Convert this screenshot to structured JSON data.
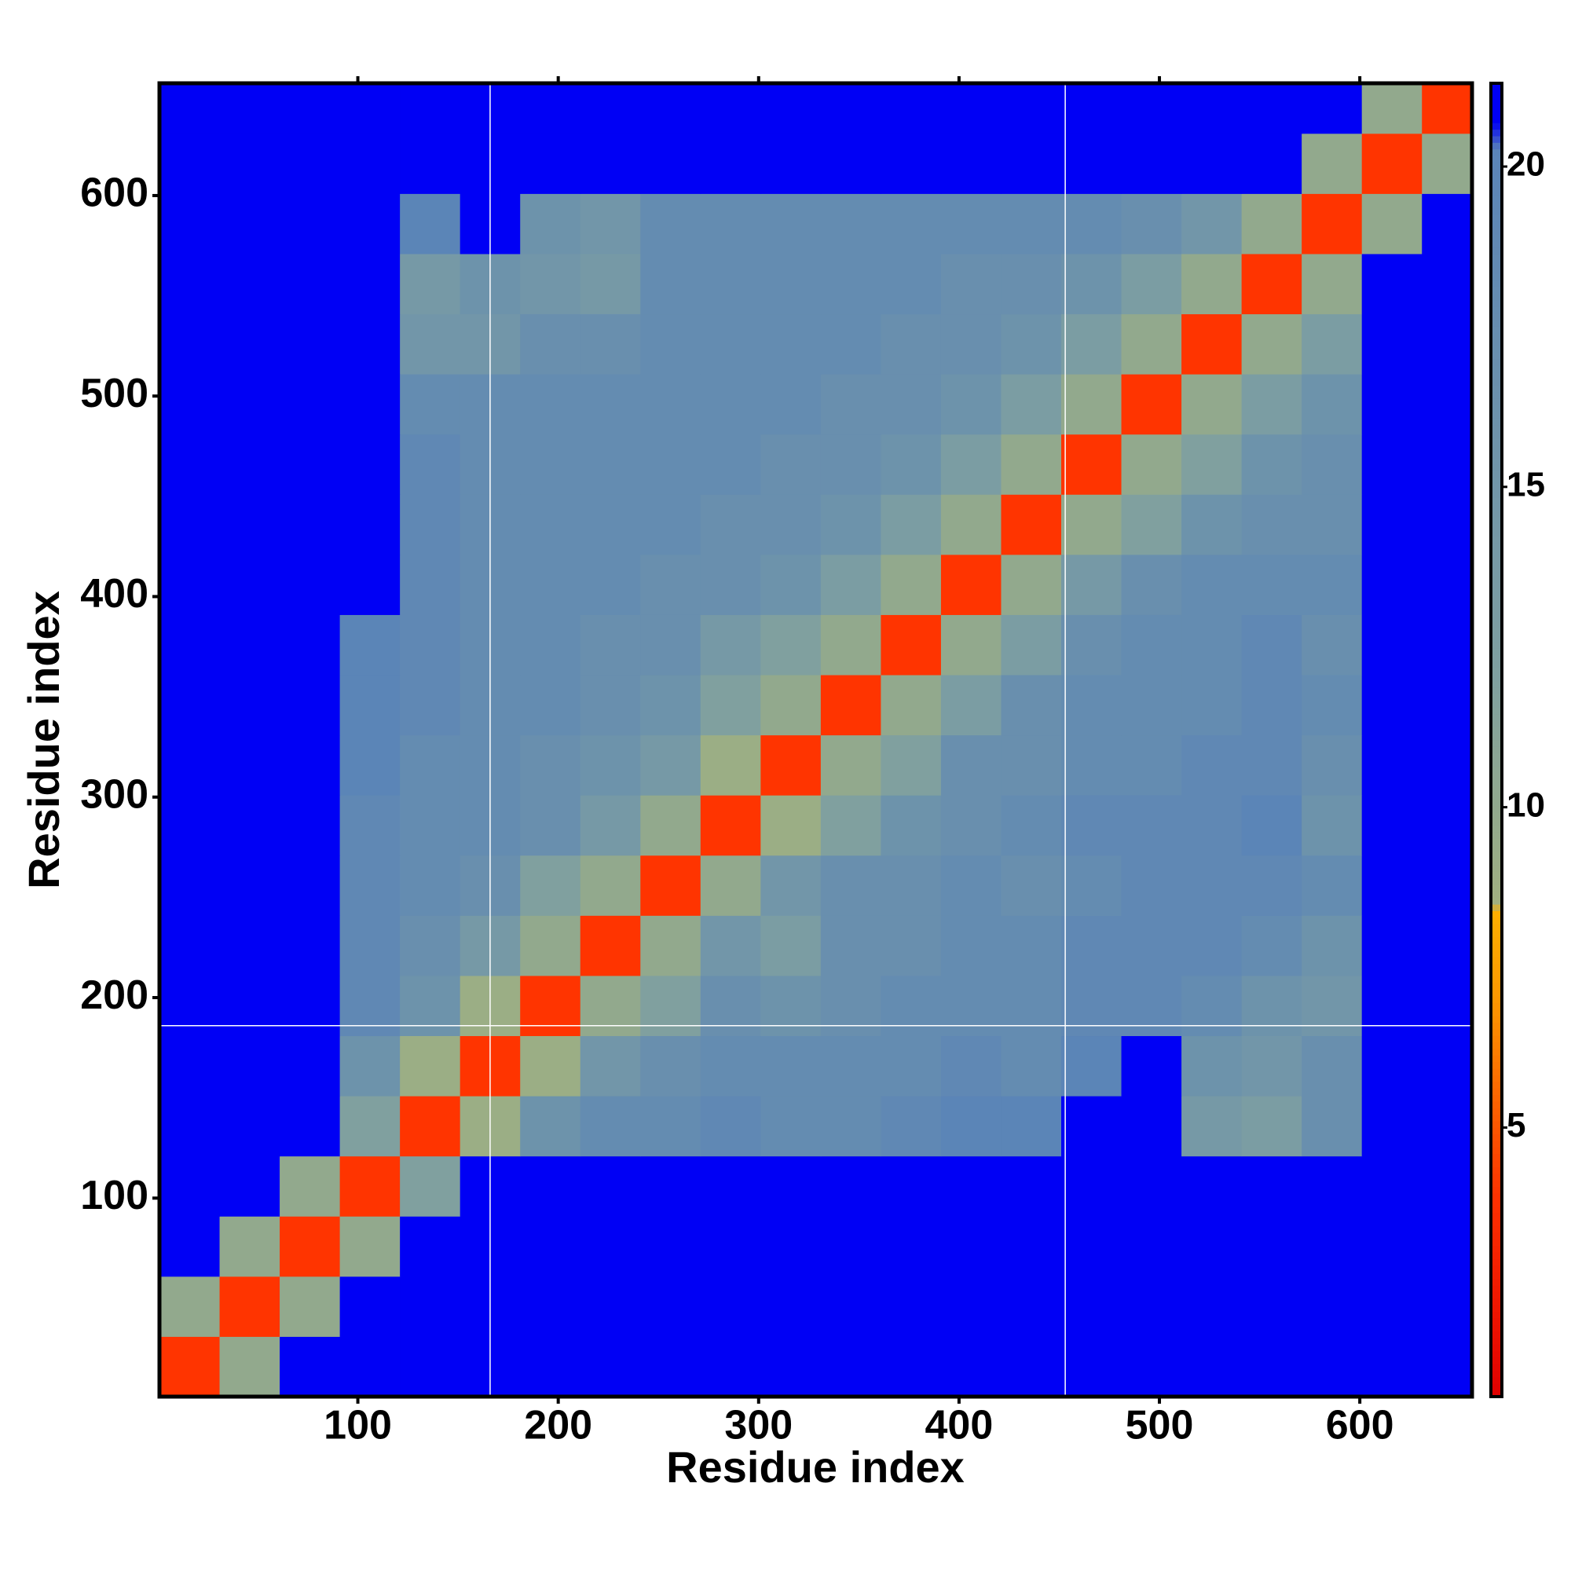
{
  "chart_data": {
    "type": "heatmap",
    "xlabel": "Residue index",
    "ylabel": "Residue index",
    "xlim": [
      1,
      656
    ],
    "ylim": [
      1,
      656
    ],
    "xticks": [
      100,
      200,
      300,
      400,
      500,
      600
    ],
    "yticks": [
      100,
      200,
      300,
      400,
      500,
      600
    ],
    "bins": [
      1,
      31,
      61,
      91,
      121,
      151,
      181,
      211,
      241,
      271,
      301,
      331,
      361,
      391,
      421,
      451,
      481,
      511,
      541,
      571,
      601,
      631,
      656
    ],
    "values": [
      [
        4,
        10,
        22,
        22,
        22,
        22,
        22,
        22,
        22,
        22,
        22,
        22,
        22,
        22,
        22,
        22,
        22,
        22,
        22,
        22,
        22,
        22
      ],
      [
        10,
        4,
        10,
        22,
        22,
        22,
        22,
        22,
        22,
        22,
        22,
        22,
        22,
        22,
        22,
        22,
        22,
        22,
        22,
        22,
        22,
        22
      ],
      [
        22,
        10,
        4,
        10,
        22,
        22,
        22,
        22,
        22,
        22,
        22,
        22,
        22,
        22,
        22,
        22,
        22,
        22,
        22,
        22,
        22,
        22
      ],
      [
        22,
        22,
        10,
        4,
        12,
        22,
        22,
        22,
        22,
        22,
        22,
        22,
        22,
        22,
        22,
        22,
        22,
        22,
        22,
        22,
        22,
        22
      ],
      [
        22,
        22,
        22,
        12,
        4,
        9,
        16,
        18,
        18,
        19,
        18,
        18,
        19,
        20,
        20,
        22,
        22,
        14,
        13,
        17,
        22,
        22
      ],
      [
        22,
        22,
        22,
        16,
        9,
        4,
        9,
        15,
        17,
        18,
        18,
        18,
        18,
        19,
        18,
        20,
        21,
        16,
        15,
        17,
        22,
        22
      ],
      [
        22,
        22,
        22,
        19,
        16,
        9,
        4,
        10,
        12,
        17,
        16,
        17,
        18,
        18,
        18,
        19,
        19,
        18,
        16,
        15,
        22,
        22
      ],
      [
        22,
        22,
        22,
        19,
        17,
        14,
        10,
        4,
        10,
        15,
        13,
        17,
        17,
        18,
        18,
        19,
        19,
        19,
        18,
        16,
        22,
        22
      ],
      [
        22,
        22,
        22,
        19,
        18,
        17,
        12,
        10,
        4,
        10,
        15,
        17,
        17,
        18,
        17,
        18,
        19,
        19,
        19,
        18,
        22,
        22
      ],
      [
        22,
        22,
        22,
        19,
        18,
        18,
        17,
        14,
        10,
        4,
        9,
        12,
        16,
        17,
        18,
        19,
        19,
        19,
        20,
        16,
        22,
        22
      ],
      [
        22,
        22,
        22,
        20,
        18,
        18,
        17,
        16,
        14,
        9,
        4,
        10,
        12,
        17,
        17,
        18,
        18,
        19,
        19,
        17,
        22,
        22
      ],
      [
        22,
        22,
        22,
        20,
        19,
        18,
        18,
        17,
        16,
        12,
        10,
        4,
        10,
        13,
        17,
        18,
        18,
        18,
        19,
        18,
        22,
        22
      ],
      [
        22,
        22,
        22,
        20,
        19,
        18,
        18,
        17,
        17,
        14,
        12,
        10,
        4,
        10,
        13,
        17,
        18,
        18,
        19,
        17,
        22,
        22
      ],
      [
        22,
        22,
        22,
        21,
        19,
        18,
        18,
        18,
        17,
        17,
        16,
        13,
        10,
        4,
        10,
        14,
        17,
        18,
        18,
        18,
        22,
        22
      ],
      [
        22,
        22,
        22,
        21,
        19,
        18,
        18,
        18,
        18,
        17,
        17,
        16,
        13,
        10,
        4,
        10,
        12,
        16,
        17,
        17,
        22,
        22
      ],
      [
        22,
        22,
        22,
        22,
        19,
        18,
        18,
        18,
        18,
        18,
        17,
        17,
        16,
        13,
        10,
        4,
        10,
        12,
        16,
        17,
        22,
        22
      ],
      [
        22,
        22,
        22,
        22,
        18,
        18,
        18,
        18,
        18,
        18,
        18,
        17,
        17,
        16,
        13,
        10,
        4,
        10,
        13,
        16,
        22,
        22
      ],
      [
        22,
        22,
        22,
        22,
        15,
        15,
        17,
        17,
        18,
        18,
        18,
        18,
        17,
        17,
        16,
        13,
        10,
        4,
        10,
        13,
        22,
        22
      ],
      [
        22,
        22,
        22,
        22,
        14,
        16,
        15,
        14,
        18,
        18,
        18,
        18,
        18,
        17,
        17,
        16,
        13,
        10,
        4,
        10,
        22,
        22
      ],
      [
        22,
        22,
        22,
        22,
        20,
        21,
        16,
        15,
        18,
        18,
        18,
        18,
        18,
        18,
        18,
        18,
        17,
        15,
        10,
        4,
        10,
        22
      ],
      [
        22,
        22,
        22,
        22,
        22,
        22,
        22,
        22,
        22,
        22,
        22,
        22,
        22,
        22,
        22,
        22,
        22,
        22,
        22,
        10,
        4,
        10
      ],
      [
        22,
        22,
        22,
        22,
        22,
        22,
        22,
        22,
        22,
        22,
        22,
        22,
        22,
        22,
        22,
        21,
        22,
        22,
        22,
        22,
        10,
        4
      ]
    ],
    "clim": [
      0.8,
      21.3
    ],
    "cticks": [
      5,
      10,
      15,
      20
    ],
    "boundary_lines_x": [
      166,
      453
    ],
    "boundary_lines_y": [
      186
    ]
  }
}
